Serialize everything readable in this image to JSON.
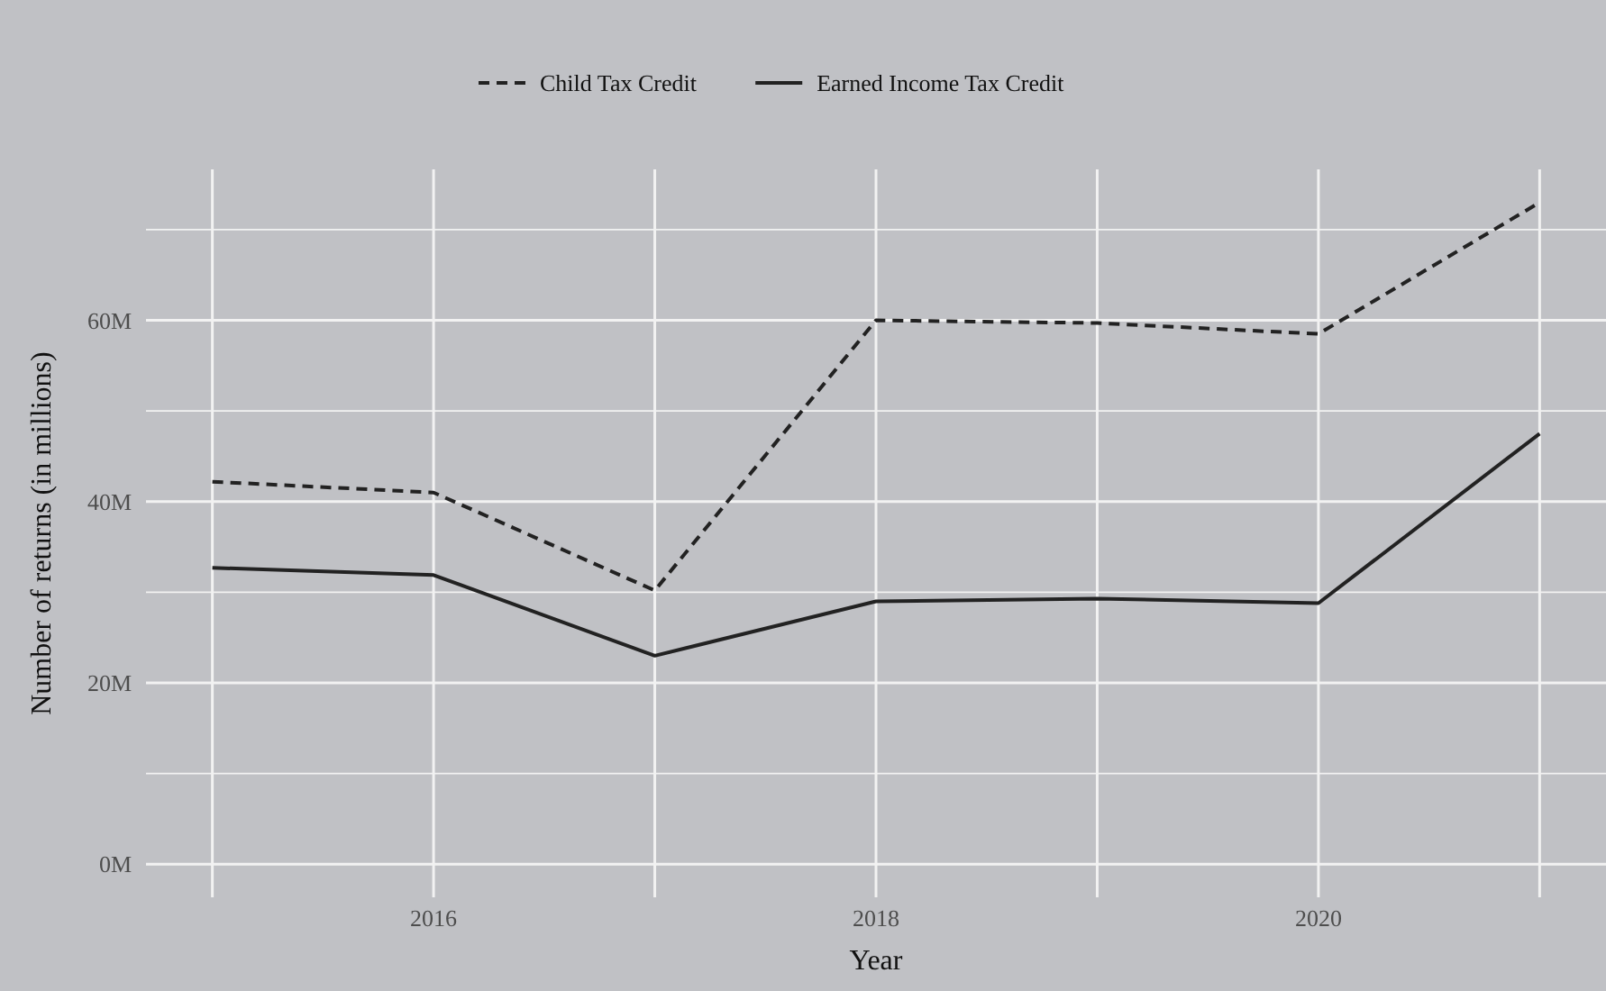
{
  "chart_data": {
    "type": "line",
    "xlabel": "Year",
    "ylabel": "Number of returns (in millions)",
    "x": [
      2015,
      2016,
      2017,
      2018,
      2019,
      2020,
      2021
    ],
    "series": [
      {
        "name": "Child Tax Credit",
        "color": "#222222",
        "line_style": "dashed",
        "values": [
          42.2,
          41.0,
          30.2,
          60.0,
          59.7,
          58.5,
          73.0
        ]
      },
      {
        "name": "Earned Income Tax Credit",
        "color": "#222222",
        "line_style": "solid",
        "values": [
          32.7,
          31.9,
          23.0,
          29.0,
          29.3,
          28.8,
          47.5
        ]
      }
    ],
    "xlim": [
      2014.7,
      2021.3
    ],
    "xticks": [
      {
        "value": 2015,
        "label": null
      },
      2016,
      {
        "value": 2017,
        "label": null
      },
      2018,
      {
        "value": 2019,
        "label": null
      },
      2020,
      {
        "value": 2021,
        "label": null
      }
    ],
    "ylim": [
      -3.65,
      76.65
    ],
    "yticks": [
      {
        "value": 0,
        "label": "0M"
      },
      {
        "value": 10,
        "label": null
      },
      {
        "value": 20,
        "label": "20M"
      },
      {
        "value": 30,
        "label": null
      },
      {
        "value": 40,
        "label": "40M"
      },
      {
        "value": 50,
        "label": null
      },
      {
        "value": 60,
        "label": "60M"
      },
      {
        "value": 70,
        "label": null
      }
    ],
    "grid": true,
    "legend": "top"
  }
}
